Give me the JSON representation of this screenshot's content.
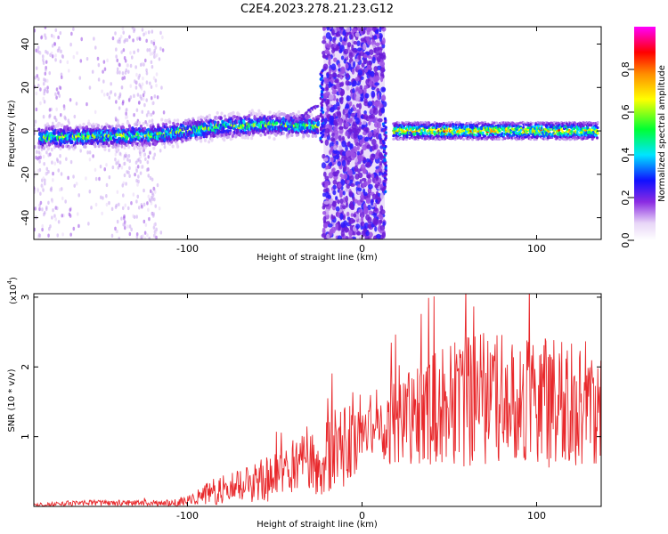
{
  "page": {
    "title": "C2E4.2023.278.21.23.G12"
  },
  "chart_data": [
    {
      "type": "heatmap",
      "xlabel": "Height of straight line (km)",
      "ylabel": "Frequency (Hz)",
      "xlim": [
        -188,
        137
      ],
      "ylim": [
        -50,
        48
      ],
      "xticks": [
        -100,
        0,
        100
      ],
      "yticks": [
        40,
        20,
        0,
        -20,
        -40
      ],
      "grid": false,
      "colorbar": {
        "label": "Normalized spectral amplitude",
        "range": [
          0.0,
          1.0
        ],
        "ticks": [
          0.0,
          0.2,
          0.4,
          0.6,
          0.8
        ],
        "colormap": [
          "#ffffff",
          "#e8d6f7",
          "#8a2be2",
          "#1010ff",
          "#00e5ff",
          "#00ff33",
          "#ffff00",
          "#ff8c00",
          "#ff0000",
          "#ff00ff"
        ]
      },
      "features": {
        "central_band_left": {
          "x": [
            -185,
            -120,
            -80,
            -50,
            -25
          ],
          "freq": [
            -3,
            -2,
            2,
            3,
            2
          ]
        },
        "saturated_region": {
          "x": [
            -22,
            13
          ]
        },
        "central_band_right": {
          "x": [
            18,
            135
          ],
          "freq": [
            0,
            0
          ]
        }
      }
    },
    {
      "type": "line",
      "xlabel": "Height of straight line (km)",
      "ylabel": "SNR (10 * v/v)",
      "y_scale_label": "(x10",
      "y_scale_exponent": "4",
      "y_scale_close": ")",
      "xlim": [
        -188,
        137
      ],
      "ylim": [
        0,
        3.05
      ],
      "xticks": [
        -100,
        0,
        100
      ],
      "yticks": [
        1,
        2,
        3
      ],
      "grid": false,
      "series": [
        {
          "color": "#e8282b",
          "envelope": {
            "x": [
              -188,
              -180,
              -170,
              -160,
              -150,
              -140,
              -130,
              -120,
              -110,
              -100,
              -95,
              -90,
              -85,
              -80,
              -75,
              -70,
              -65,
              -60,
              -55,
              -50,
              -45,
              -40,
              -35,
              -30,
              -25,
              -20,
              -15,
              -10,
              -5,
              0,
              5,
              10,
              15,
              20,
              25,
              30,
              35,
              40,
              45,
              50,
              55,
              60,
              65,
              70,
              75,
              80,
              85,
              90,
              95,
              100,
              105,
              110,
              115,
              120,
              125,
              130,
              135
            ],
            "base": [
              0.02,
              0.03,
              0.04,
              0.05,
              0.05,
              0.05,
              0.05,
              0.05,
              0.05,
              0.08,
              0.12,
              0.18,
              0.22,
              0.25,
              0.28,
              0.3,
              0.32,
              0.35,
              0.38,
              0.42,
              0.48,
              0.55,
              0.6,
              0.62,
              0.65,
              0.72,
              0.8,
              0.88,
              0.92,
              1.12,
              1.12,
              1.1,
              1.15,
              1.2,
              1.25,
              1.3,
              1.35,
              1.4,
              1.45,
              1.5,
              1.5,
              1.5,
              1.55,
              1.55,
              1.55,
              1.55,
              1.55,
              1.55,
              1.55,
              1.55,
              1.5,
              1.5,
              1.45,
              1.45,
              1.45,
              1.45,
              1.4
            ],
            "amplitude": [
              0.02,
              0.03,
              0.04,
              0.04,
              0.04,
              0.04,
              0.04,
              0.04,
              0.05,
              0.08,
              0.1,
              0.18,
              0.2,
              0.22,
              0.22,
              0.22,
              0.25,
              0.3,
              0.32,
              0.35,
              0.38,
              0.4,
              0.42,
              0.45,
              0.5,
              0.55,
              0.6,
              0.65,
              0.55,
              0.35,
              0.35,
              0.4,
              0.55,
              0.6,
              0.65,
              0.7,
              0.75,
              0.8,
              0.85,
              0.9,
              0.95,
              0.95,
              0.95,
              0.95,
              0.95,
              0.95,
              0.95,
              0.95,
              0.95,
              0.95,
              0.95,
              0.95,
              0.95,
              0.95,
              0.95,
              0.95,
              0.95
            ]
          }
        }
      ]
    }
  ]
}
